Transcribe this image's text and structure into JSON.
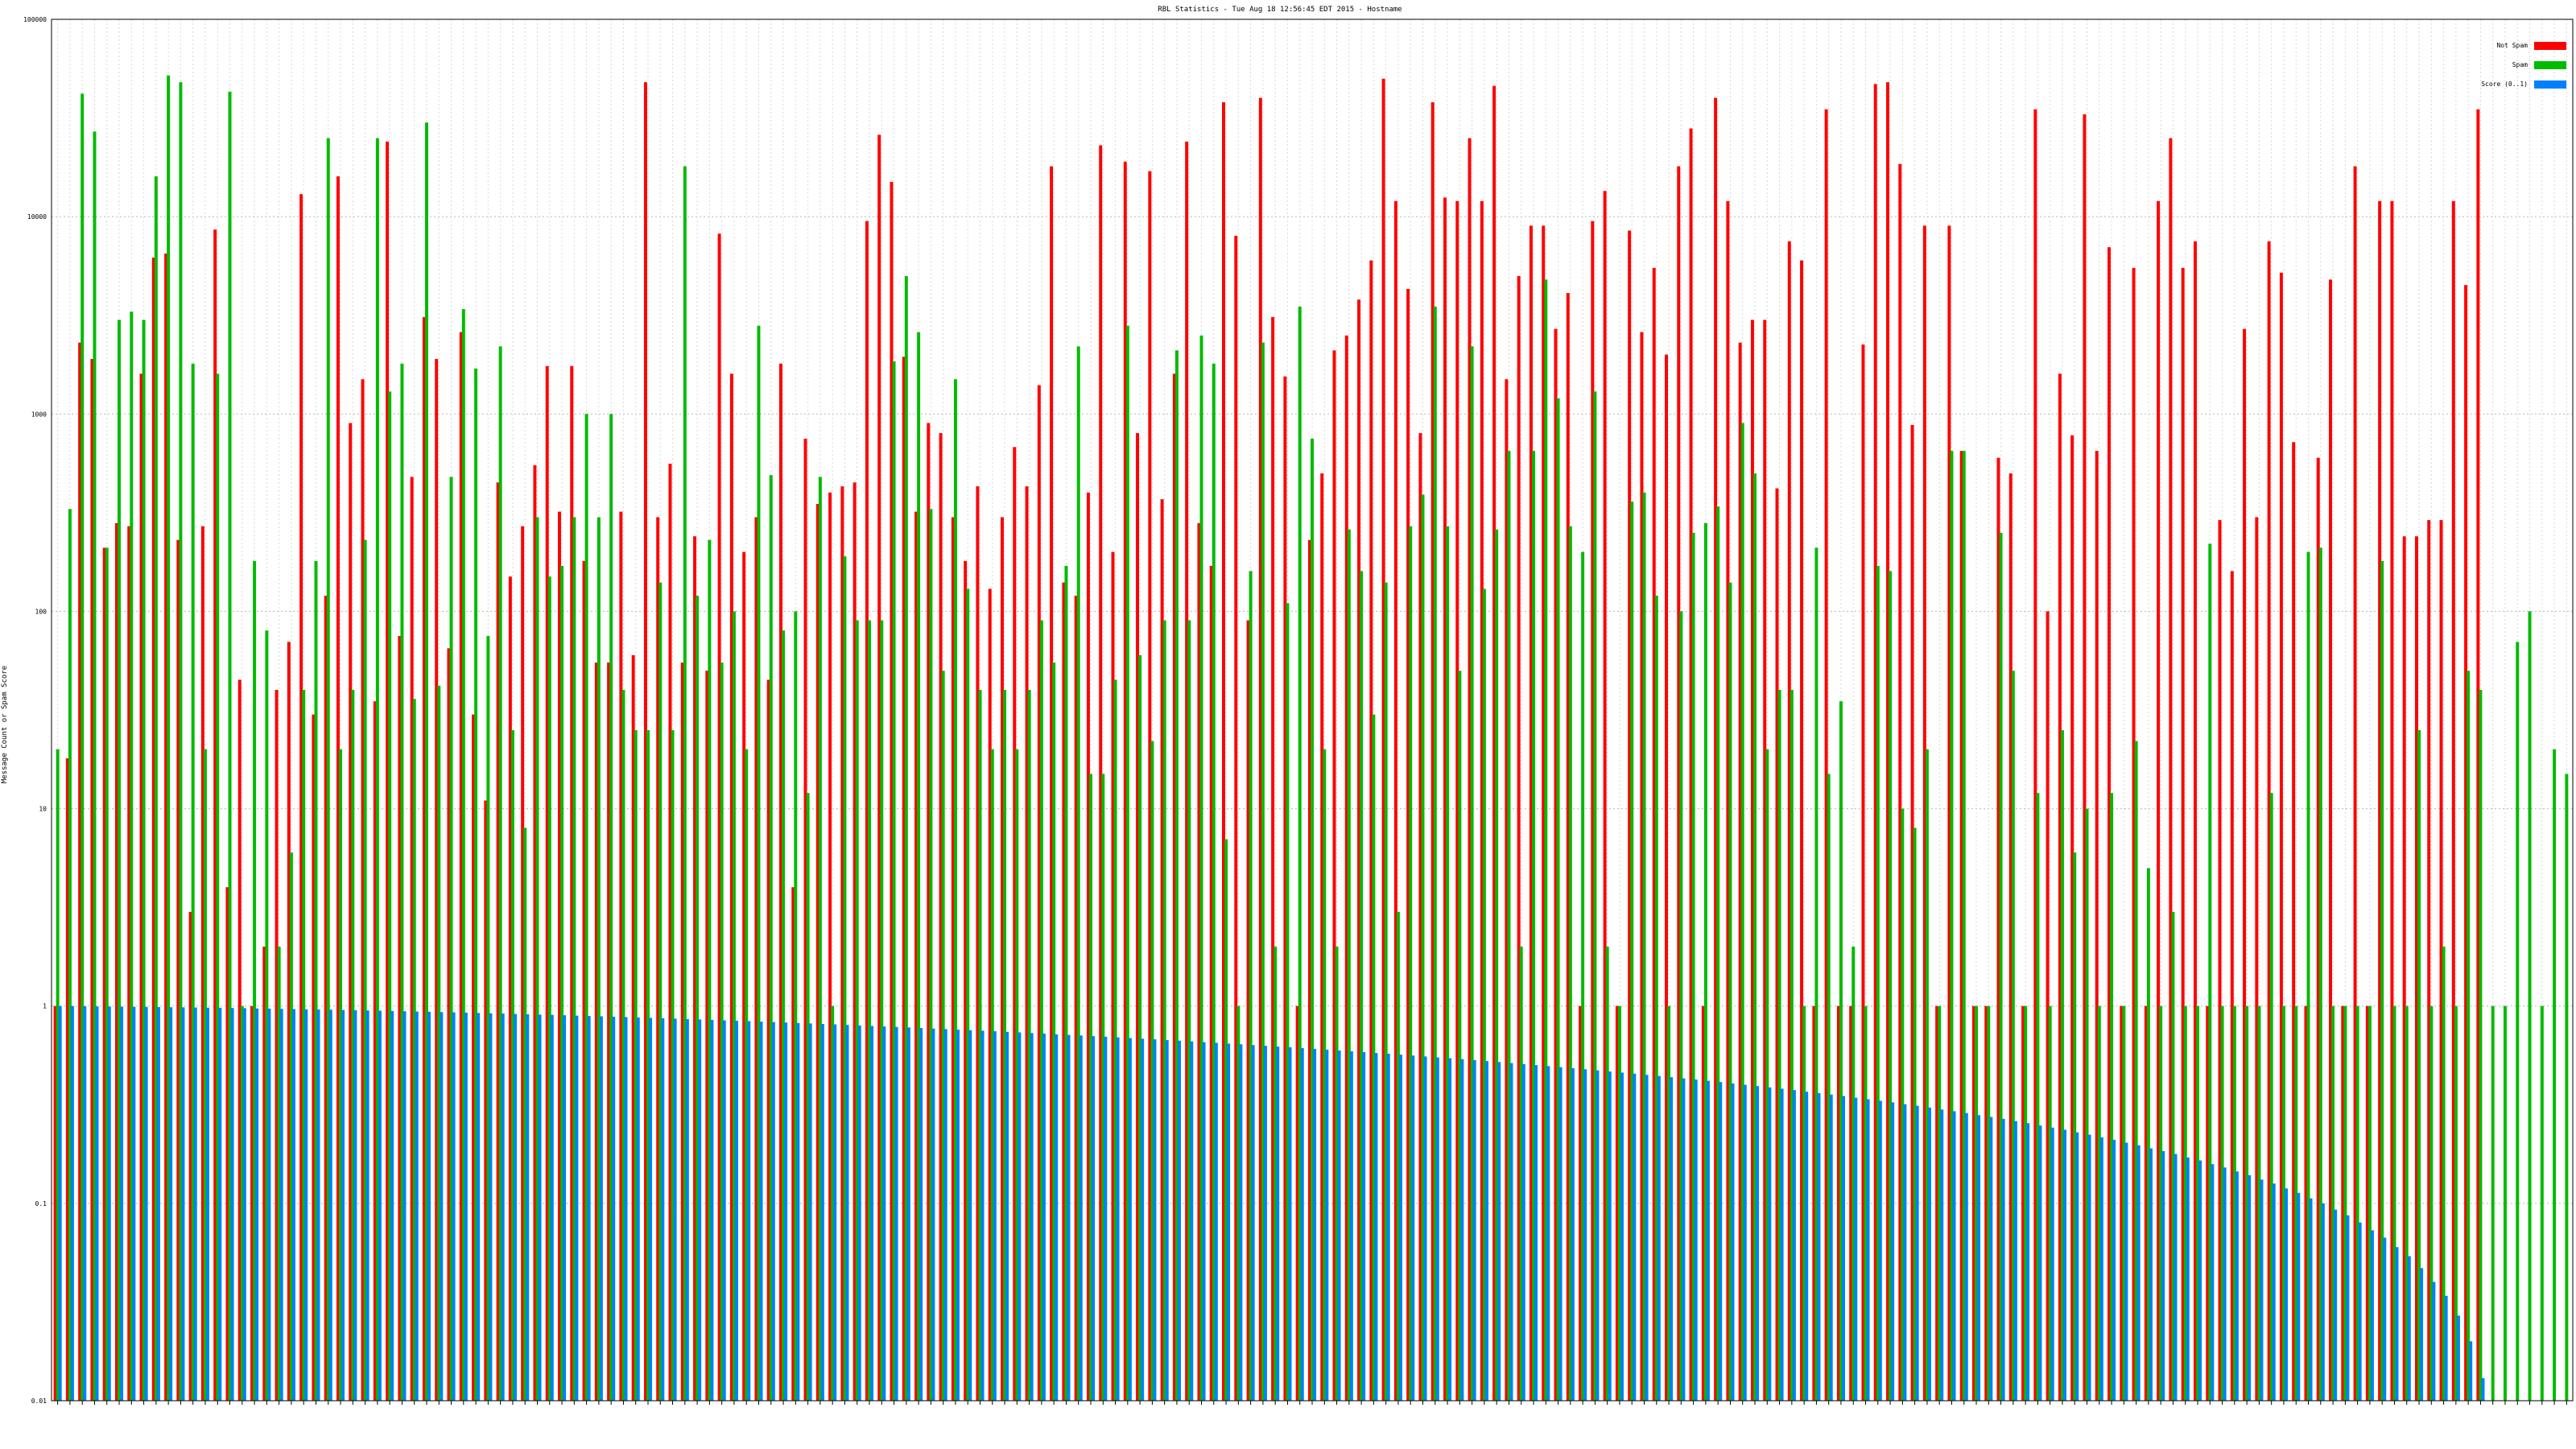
{
  "chart_data": {
    "type": "bar",
    "title": "RBL Statistics - Tue Aug 18 12:56:45 EDT 2015 - Hostname",
    "ylabel": "Message Count or Spam Score",
    "xlabel": "",
    "y_scale": "log",
    "ylim": [
      0.01,
      100000
    ],
    "y_ticks": [
      {
        "value": 0.01,
        "label": "0.01"
      },
      {
        "value": 0.1,
        "label": "0.1"
      },
      {
        "value": 1,
        "label": "1"
      },
      {
        "value": 10,
        "label": "10"
      },
      {
        "value": 100,
        "label": "100"
      },
      {
        "value": 1000,
        "label": "1000"
      },
      {
        "value": 10000,
        "label": "10000"
      },
      {
        "value": 100000,
        "label": "100000"
      }
    ],
    "grid": true,
    "legend_placement": "top-right",
    "series": [
      {
        "name": "Not Spam",
        "color": "#ff0000",
        "values": [
          1,
          18,
          2300,
          1900,
          210,
          280,
          270,
          1600,
          6200,
          6500,
          230,
          3,
          270,
          8600,
          4,
          45,
          1,
          2,
          40,
          70,
          13000,
          30,
          120,
          16000,
          900,
          1500,
          35,
          24000,
          75,
          480,
          3100,
          1900,
          65,
          2600,
          30,
          11,
          450,
          150,
          270,
          550,
          1750,
          320,
          1750,
          180,
          55,
          55,
          320,
          60,
          48000,
          300,
          560,
          55,
          240,
          50,
          8200,
          1600,
          200,
          300,
          45,
          1800,
          4,
          750,
          350,
          400,
          430,
          450,
          9500,
          26000,
          15000,
          1950,
          320,
          900,
          800,
          300,
          180,
          430,
          130,
          300,
          680,
          430,
          1400,
          18000,
          140,
          120,
          400,
          23000,
          200,
          19000,
          800,
          17000,
          370,
          1600,
          24000,
          280,
          170,
          38000,
          8000,
          90,
          40000,
          3100,
          1550,
          1,
          230,
          500,
          2100,
          2500,
          3800,
          6000,
          50000,
          12000,
          4300,
          800,
          38000,
          12500,
          12000,
          25000,
          12000,
          46000,
          1500,
          5000,
          9000,
          9000,
          2700,
          4100,
          1,
          9500,
          13500,
          1,
          8500,
          2600,
          5500,
          2000,
          18000,
          28000,
          1,
          40000,
          12000,
          2300,
          3000,
          3000,
          420,
          7500,
          6000,
          1,
          35000,
          1,
          1,
          2250,
          47000,
          48000,
          18500,
          880,
          9000,
          1,
          9000,
          650,
          1,
          1,
          600,
          500,
          1,
          35000,
          100,
          1600,
          780,
          33000,
          650,
          7000,
          1,
          5500,
          1,
          12000,
          25000,
          5500,
          7500,
          1,
          290,
          160,
          2700,
          300,
          7500,
          5200,
          720,
          1,
          600,
          4800,
          1,
          18000,
          1,
          12000,
          12000,
          240,
          240,
          290,
          290,
          12000,
          4500,
          35000
        ]
      },
      {
        "name": "Spam",
        "color": "#00bb00",
        "values": [
          20,
          330,
          42000,
          27000,
          210,
          3000,
          3300,
          3000,
          16000,
          52000,
          48000,
          1800,
          20,
          1600,
          43000,
          1,
          180,
          80,
          2,
          6,
          40,
          180,
          25000,
          20,
          40,
          230,
          25000,
          1300,
          1800,
          36,
          30000,
          42,
          480,
          3400,
          1700,
          75,
          2200,
          25,
          8,
          300,
          150,
          170,
          300,
          1000,
          300,
          1000,
          40,
          25,
          25,
          140,
          25,
          18000,
          120,
          230,
          55,
          100,
          20,
          2800,
          490,
          80,
          100,
          12,
          480,
          1,
          190,
          90,
          90,
          90,
          1850,
          5000,
          2600,
          330,
          50,
          1500,
          130,
          40,
          20,
          40,
          20,
          40,
          90,
          55,
          170,
          2200,
          15,
          15,
          45,
          2800,
          60,
          22,
          90,
          2100,
          90,
          2500,
          1800,
          7,
          1,
          160,
          2300,
          2,
          110,
          3500,
          750,
          20,
          2,
          260,
          160,
          30,
          140,
          3,
          270,
          390,
          3500,
          270,
          50,
          2200,
          130,
          260,
          650,
          2,
          650,
          4800,
          1200,
          270,
          200,
          1300,
          2,
          1,
          360,
          400,
          120,
          1,
          100,
          250,
          280,
          340,
          140,
          900,
          500,
          20,
          40,
          40,
          1,
          210,
          15,
          35,
          2,
          1,
          170,
          160,
          10,
          8,
          20,
          1,
          650,
          650,
          1,
          1,
          250,
          50,
          1,
          12,
          1,
          25,
          6,
          10,
          1,
          12,
          1,
          22,
          5,
          1,
          3,
          1,
          1,
          220,
          1,
          1,
          1,
          1,
          12,
          1,
          1,
          200,
          210,
          1,
          1,
          1,
          1,
          180,
          1,
          1,
          25,
          1,
          2,
          1,
          50,
          40,
          1,
          1,
          70,
          100,
          1,
          20,
          15
        ]
      },
      {
        "name": "Score (0..1)",
        "color": "#0080ff",
        "values": [
          1,
          0.999,
          0.997,
          0.995,
          0.994,
          0.993,
          0.991,
          0.99,
          0.988,
          0.986,
          0.985,
          0.983,
          0.981,
          0.98,
          0.977,
          0.975,
          0.972,
          0.97,
          0.967,
          0.965,
          0.962,
          0.96,
          0.958,
          0.955,
          0.952,
          0.95,
          0.947,
          0.944,
          0.941,
          0.938,
          0.935,
          0.932,
          0.929,
          0.926,
          0.922,
          0.919,
          0.916,
          0.912,
          0.909,
          0.905,
          0.902,
          0.898,
          0.894,
          0.89,
          0.887,
          0.883,
          0.879,
          0.875,
          0.871,
          0.867,
          0.863,
          0.859,
          0.855,
          0.851,
          0.846,
          0.842,
          0.838,
          0.833,
          0.829,
          0.825,
          0.82,
          0.816,
          0.811,
          0.807,
          0.802,
          0.797,
          0.793,
          0.788,
          0.783,
          0.779,
          0.774,
          0.769,
          0.764,
          0.759,
          0.754,
          0.75,
          0.745,
          0.74,
          0.735,
          0.73,
          0.725,
          0.719,
          0.714,
          0.709,
          0.704,
          0.699,
          0.694,
          0.688,
          0.683,
          0.678,
          0.672,
          0.667,
          0.662,
          0.656,
          0.651,
          0.645,
          0.64,
          0.634,
          0.629,
          0.623,
          0.618,
          0.612,
          0.607,
          0.601,
          0.595,
          0.59,
          0.584,
          0.578,
          0.573,
          0.567,
          0.561,
          0.555,
          0.549,
          0.544,
          0.538,
          0.532,
          0.526,
          0.52,
          0.514,
          0.508,
          0.502,
          0.496,
          0.49,
          0.484,
          0.478,
          0.472,
          0.466,
          0.46,
          0.454,
          0.448,
          0.442,
          0.436,
          0.43,
          0.424,
          0.418,
          0.412,
          0.405,
          0.399,
          0.393,
          0.387,
          0.381,
          0.375,
          0.368,
          0.362,
          0.356,
          0.35,
          0.343,
          0.337,
          0.331,
          0.325,
          0.318,
          0.312,
          0.306,
          0.299,
          0.293,
          0.287,
          0.28,
          0.274,
          0.268,
          0.261,
          0.255,
          0.248,
          0.242,
          0.236,
          0.229,
          0.223,
          0.216,
          0.21,
          0.203,
          0.197,
          0.19,
          0.184,
          0.178,
          0.171,
          0.165,
          0.158,
          0.152,
          0.145,
          0.139,
          0.132,
          0.126,
          0.119,
          0.113,
          0.106,
          0.1,
          0.093,
          0.087,
          0.08,
          0.073,
          0.067,
          0.06,
          0.054,
          0.047,
          0.04,
          0.034,
          0.027,
          0.02,
          0.013
        ]
      }
    ]
  }
}
